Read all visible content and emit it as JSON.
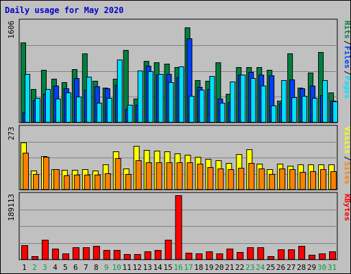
{
  "title": "Daily usage for May 2020",
  "colors": {
    "hits": "#008040",
    "files": "#0040ff",
    "pages": "#00e0ff",
    "visits": "#ffff00",
    "sites": "#ff8000",
    "kbytes": "#ff0000",
    "weekend_day": "#00a040",
    "weekday_day": "#000000"
  },
  "chart_data": [
    {
      "type": "bar",
      "title": "Daily usage for May 2020",
      "categories": [
        "1",
        "2",
        "3",
        "4",
        "5",
        "6",
        "7",
        "8",
        "9",
        "10",
        "11",
        "12",
        "13",
        "14",
        "15",
        "16",
        "17",
        "18",
        "19",
        "20",
        "21",
        "22",
        "23",
        "24",
        "25",
        "26",
        "27",
        "28",
        "29",
        "30",
        "31"
      ],
      "weekend_days": [
        "2",
        "3",
        "9",
        "10",
        "16",
        "17",
        "23",
        "24",
        "30",
        "31"
      ],
      "ymax_label": "1606",
      "ylim": [
        0,
        1606
      ],
      "series": [
        {
          "name": "Hits",
          "values": [
            1280,
            530,
            840,
            700,
            640,
            850,
            1100,
            670,
            560,
            700,
            1160,
            380,
            980,
            960,
            940,
            890,
            1520,
            680,
            670,
            960,
            460,
            890,
            890,
            880,
            840,
            350,
            1100,
            560,
            800,
            1120,
            480
          ]
        },
        {
          "name": "Files",
          "values": [
            160,
            360,
            460,
            590,
            550,
            710,
            520,
            580,
            550,
            600,
            220,
            280,
            910,
            760,
            780,
            720,
            1340,
            570,
            540,
            380,
            330,
            760,
            810,
            770,
            750,
            310,
            690,
            550,
            590,
            440,
            350
          ]
        },
        {
          "name": "Pages",
          "values": [
            780,
            390,
            540,
            380,
            480,
            410,
            730,
            320,
            390,
            1000,
            280,
            830,
            820,
            780,
            650,
            900,
            430,
            520,
            740,
            320,
            660,
            770,
            710,
            590,
            270,
            680,
            400,
            430,
            390,
            680,
            340
          ]
        }
      ],
      "legend": [
        "Pages",
        "Files",
        "Hits"
      ]
    },
    {
      "type": "bar",
      "ymax_label": "273",
      "ylim": [
        0,
        273
      ],
      "series": [
        {
          "name": "Visits",
          "values": [
            209,
            86,
            150,
            92,
            88,
            88,
            90,
            86,
            112,
            170,
            94,
            193,
            177,
            173,
            171,
            160,
            156,
            145,
            138,
            130,
            117,
            158,
            180,
            115,
            92,
            116,
            106,
            112,
            112,
            112,
            112
          ]
        },
        {
          "name": "Sites",
          "values": [
            165,
            70,
            145,
            91,
            65,
            68,
            68,
            68,
            72,
            140,
            70,
            130,
            122,
            121,
            122,
            122,
            122,
            115,
            101,
            95,
            90,
            98,
            117,
            95,
            70,
            93,
            92,
            78,
            82,
            90,
            82
          ]
        }
      ],
      "legend": [
        "Sites",
        "Visits"
      ]
    },
    {
      "type": "bar",
      "ymax_label": "189113",
      "ylim": [
        0,
        189113
      ],
      "series": [
        {
          "name": "KBytes",
          "values": [
            42000,
            10000,
            58000,
            33000,
            18000,
            36000,
            36000,
            41000,
            28000,
            29000,
            17000,
            17000,
            25000,
            28000,
            58000,
            189113,
            20000,
            18000,
            25000,
            18000,
            33000,
            23000,
            36000,
            36000,
            10000,
            30000,
            30000,
            41000,
            14000,
            19000,
            25000
          ]
        }
      ],
      "legend": [
        "KBytes"
      ]
    }
  ]
}
